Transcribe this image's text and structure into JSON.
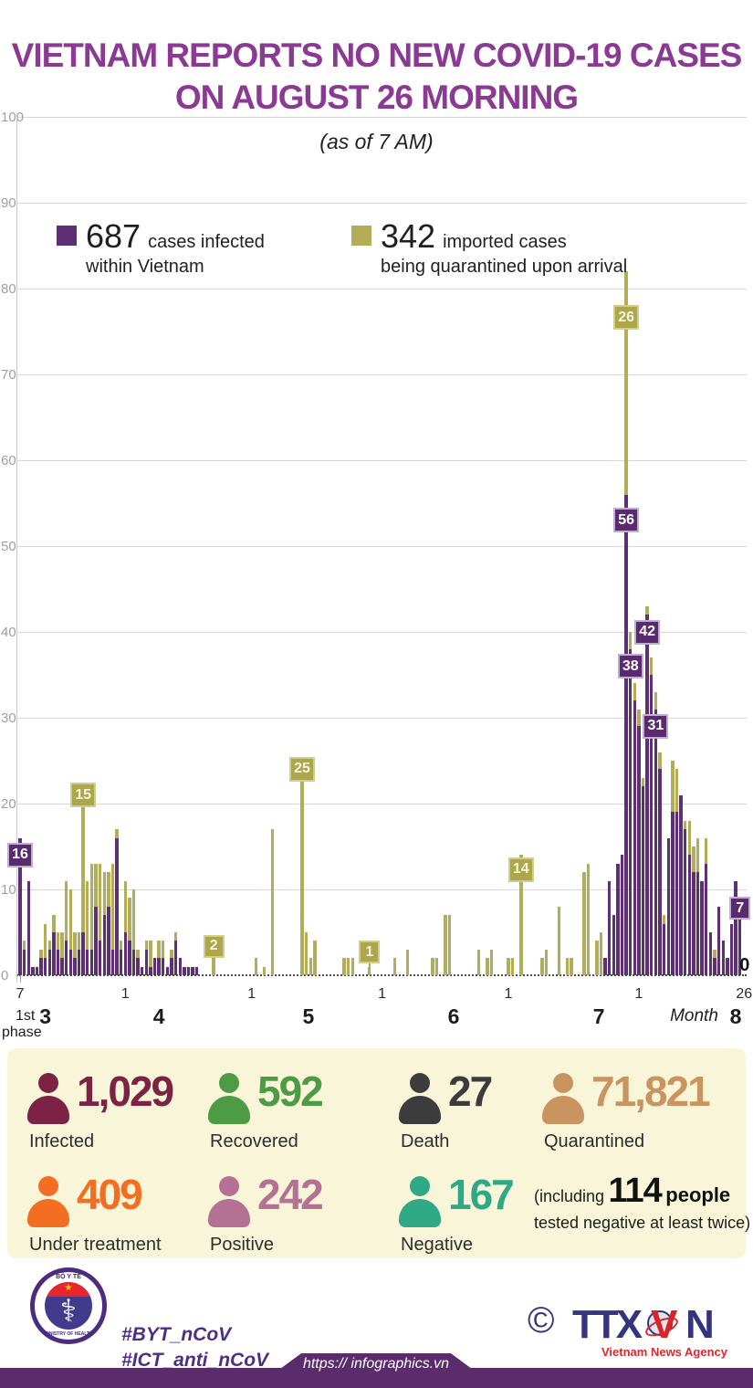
{
  "title_line1": "VIETNAM REPORTS NO NEW COVID-19 CASES",
  "title_line2": "ON AUGUST 26 MORNING",
  "subtitle": "(as of 7 AM)",
  "colors": {
    "domestic": "#5d2f73",
    "imported": "#b3ac58",
    "title": "#8b3a94",
    "panel_bg": "#f8f5d8",
    "footer_bar": "#5b2c6c"
  },
  "legend": {
    "domestic": {
      "value": "687",
      "line1": "cases infected",
      "line2": "within Vietnam"
    },
    "imported": {
      "value": "342",
      "line1": "imported cases",
      "line2": "being quarantined upon arrival"
    }
  },
  "chart_data": {
    "type": "bar",
    "stacked": true,
    "ylim": [
      0,
      100
    ],
    "y_ticks": [
      0,
      10,
      20,
      30,
      40,
      50,
      60,
      70,
      80,
      90,
      100
    ],
    "series_meta": [
      {
        "name": "cases infected within Vietnam",
        "key": "domestic"
      },
      {
        "name": "imported cases being quarantined upon arrival",
        "key": "imported"
      }
    ],
    "x_description": "daily bars from March 7 to August 26, 2020",
    "days": [
      [
        16,
        0
      ],
      [
        3,
        1
      ],
      [
        11,
        0
      ],
      [
        1,
        0
      ],
      [
        1,
        0
      ],
      [
        2,
        1
      ],
      [
        2,
        4
      ],
      [
        3,
        1
      ],
      [
        5,
        2
      ],
      [
        3,
        2
      ],
      [
        2,
        3
      ],
      [
        4,
        7
      ],
      [
        3,
        7
      ],
      [
        2,
        3
      ],
      [
        3,
        2
      ],
      [
        5,
        15
      ],
      [
        3,
        8
      ],
      [
        3,
        10
      ],
      [
        8,
        5
      ],
      [
        4,
        9
      ],
      [
        7,
        5
      ],
      [
        8,
        4
      ],
      [
        3,
        10
      ],
      [
        16,
        1
      ],
      [
        3,
        1
      ],
      [
        5,
        6
      ],
      [
        4,
        5
      ],
      [
        3,
        7
      ],
      [
        2,
        1
      ],
      [
        1,
        0
      ],
      [
        3,
        1
      ],
      [
        1,
        3
      ],
      [
        2,
        0
      ],
      [
        2,
        2
      ],
      [
        2,
        2
      ],
      [
        1,
        0
      ],
      [
        2,
        1
      ],
      [
        4,
        1
      ],
      [
        2,
        0
      ],
      [
        1,
        0
      ],
      [
        1,
        0
      ],
      [
        1,
        0
      ],
      [
        1,
        0
      ],
      [
        0,
        0
      ],
      [
        0,
        0
      ],
      [
        0,
        0
      ],
      [
        0,
        2
      ],
      [
        0,
        0
      ],
      [
        0,
        0
      ],
      [
        0,
        0
      ],
      [
        0,
        0
      ],
      [
        0,
        0
      ],
      [
        0,
        0
      ],
      [
        0,
        0
      ],
      [
        0,
        0
      ],
      [
        0,
        0
      ],
      [
        0,
        2
      ],
      [
        0,
        0
      ],
      [
        0,
        1
      ],
      [
        0,
        0
      ],
      [
        0,
        17
      ],
      [
        0,
        0
      ],
      [
        0,
        0
      ],
      [
        0,
        0
      ],
      [
        0,
        0
      ],
      [
        0,
        0
      ],
      [
        0,
        0
      ],
      [
        0,
        25
      ],
      [
        0,
        5
      ],
      [
        0,
        2
      ],
      [
        0,
        4
      ],
      [
        0,
        0
      ],
      [
        0,
        0
      ],
      [
        0,
        0
      ],
      [
        0,
        0
      ],
      [
        0,
        0
      ],
      [
        0,
        0
      ],
      [
        0,
        2
      ],
      [
        0,
        2
      ],
      [
        0,
        2
      ],
      [
        0,
        0
      ],
      [
        0,
        0
      ],
      [
        0,
        0
      ],
      [
        0,
        1
      ],
      [
        0,
        0
      ],
      [
        0,
        0
      ],
      [
        0,
        0
      ],
      [
        0,
        0
      ],
      [
        0,
        0
      ],
      [
        0,
        2
      ],
      [
        0,
        0
      ],
      [
        0,
        0
      ],
      [
        0,
        3
      ],
      [
        0,
        0
      ],
      [
        0,
        0
      ],
      [
        0,
        0
      ],
      [
        0,
        0
      ],
      [
        0,
        0
      ],
      [
        0,
        2
      ],
      [
        0,
        2
      ],
      [
        0,
        0
      ],
      [
        0,
        7
      ],
      [
        0,
        7
      ],
      [
        0,
        0
      ],
      [
        0,
        0
      ],
      [
        0,
        0
      ],
      [
        0,
        0
      ],
      [
        0,
        0
      ],
      [
        0,
        0
      ],
      [
        0,
        3
      ],
      [
        0,
        0
      ],
      [
        0,
        2
      ],
      [
        0,
        3
      ],
      [
        0,
        0
      ],
      [
        0,
        0
      ],
      [
        0,
        0
      ],
      [
        0,
        2
      ],
      [
        0,
        2
      ],
      [
        0,
        0
      ],
      [
        0,
        14
      ],
      [
        0,
        0
      ],
      [
        0,
        0
      ],
      [
        0,
        0
      ],
      [
        0,
        0
      ],
      [
        0,
        2
      ],
      [
        0,
        3
      ],
      [
        0,
        0
      ],
      [
        0,
        0
      ],
      [
        0,
        8
      ],
      [
        0,
        0
      ],
      [
        0,
        2
      ],
      [
        0,
        2
      ],
      [
        0,
        0
      ],
      [
        0,
        0
      ],
      [
        0,
        12
      ],
      [
        0,
        13
      ],
      [
        0,
        0
      ],
      [
        0,
        4
      ],
      [
        0,
        5
      ],
      [
        2,
        0
      ],
      [
        11,
        0
      ],
      [
        7,
        0
      ],
      [
        13,
        0
      ],
      [
        14,
        0
      ],
      [
        56,
        26
      ],
      [
        38,
        2
      ],
      [
        32,
        2
      ],
      [
        29,
        2
      ],
      [
        22,
        1
      ],
      [
        42,
        1
      ],
      [
        35,
        2
      ],
      [
        31,
        2
      ],
      [
        24,
        2
      ],
      [
        6,
        1
      ],
      [
        16,
        0
      ],
      [
        19,
        6
      ],
      [
        19,
        5
      ],
      [
        21,
        0
      ],
      [
        17,
        1
      ],
      [
        14,
        4
      ],
      [
        12,
        3
      ],
      [
        12,
        4
      ],
      [
        11,
        0
      ],
      [
        13,
        3
      ],
      [
        5,
        0
      ],
      [
        2,
        1
      ],
      [
        8,
        0
      ],
      [
        4,
        0
      ],
      [
        2,
        0
      ],
      [
        6,
        0
      ],
      [
        11,
        0
      ],
      [
        7,
        0
      ],
      [
        0,
        0
      ]
    ],
    "callouts": [
      {
        "i": 0,
        "v": "16",
        "s": "d",
        "y": 14
      },
      {
        "i": 15,
        "v": "15",
        "s": "m",
        "y": 21
      },
      {
        "i": 46,
        "v": "2",
        "s": "m",
        "y": 3.4
      },
      {
        "i": 67,
        "v": "25",
        "s": "m",
        "y": 24
      },
      {
        "i": 83,
        "v": "1",
        "s": "m",
        "y": 2.7
      },
      {
        "i": 119,
        "v": "14",
        "s": "m",
        "y": 12.3
      },
      {
        "i": 144,
        "v": "26",
        "s": "m",
        "y": 76.6
      },
      {
        "i": 144,
        "v": "56",
        "s": "d",
        "y": 53
      },
      {
        "i": 145,
        "v": "38",
        "s": "d",
        "y": 36
      },
      {
        "i": 149,
        "v": "42",
        "s": "d",
        "y": 40
      },
      {
        "i": 151,
        "v": "31",
        "s": "d",
        "y": 29
      },
      {
        "i": 171,
        "v": "7",
        "s": "d",
        "y": 7.8
      }
    ],
    "x_ticks": [
      {
        "i": 0,
        "label": "7"
      },
      {
        "i": 25,
        "label": "1"
      },
      {
        "i": 55,
        "label": "1"
      },
      {
        "i": 86,
        "label": "1"
      },
      {
        "i": 116,
        "label": "1"
      },
      {
        "i": 147,
        "label": "1"
      },
      {
        "i": 172,
        "label": "26"
      }
    ],
    "month_ticks": [
      {
        "i": 6,
        "label": "3"
      },
      {
        "i": 33,
        "label": "4"
      },
      {
        "i": 68.5,
        "label": "5"
      },
      {
        "i": 103,
        "label": "6"
      },
      {
        "i": 137.5,
        "label": "7"
      },
      {
        "i": 170,
        "label": "8"
      }
    ],
    "month_word": {
      "i": 157,
      "label": "Month"
    },
    "phase": {
      "line1": "1st",
      "line2": "phase"
    },
    "zero_label": {
      "i": 172,
      "label": "0"
    }
  },
  "stats": [
    {
      "value": "1,029",
      "label": "Infected",
      "color": "#7c2245"
    },
    {
      "value": "592",
      "label": "Recovered",
      "color": "#4e9b45"
    },
    {
      "value": "27",
      "label": "Death",
      "color": "#3c3c3c"
    },
    {
      "value": "71,821",
      "label": "Quarantined",
      "color": "#c9945f"
    },
    {
      "value": "409",
      "label": "Under treatment",
      "color": "#f36e22"
    },
    {
      "value": "242",
      "label": "Positive",
      "color": "#b57193"
    },
    {
      "value": "167",
      "label": "Negative",
      "color": "#2fa985"
    }
  ],
  "note": {
    "pre": "(including",
    "big": "114",
    "mid": "people",
    "line2": "tested negative at least twice)"
  },
  "footer": {
    "moh_top": "BỘ Y TẾ",
    "moh_bottom": "MINISTRY OF HEALTH",
    "moh_star": "★",
    "moh_staff": "⚕",
    "hashtag1": "#BYT_nCoV",
    "hashtag2": "#ICT_anti_nCoV",
    "copyright": "©",
    "agency_ttx": "TTX",
    "agency_v": "V",
    "agency_n": "N",
    "agency_sub": "Vietnam News Agency",
    "url": "https:// infographics.vn"
  }
}
